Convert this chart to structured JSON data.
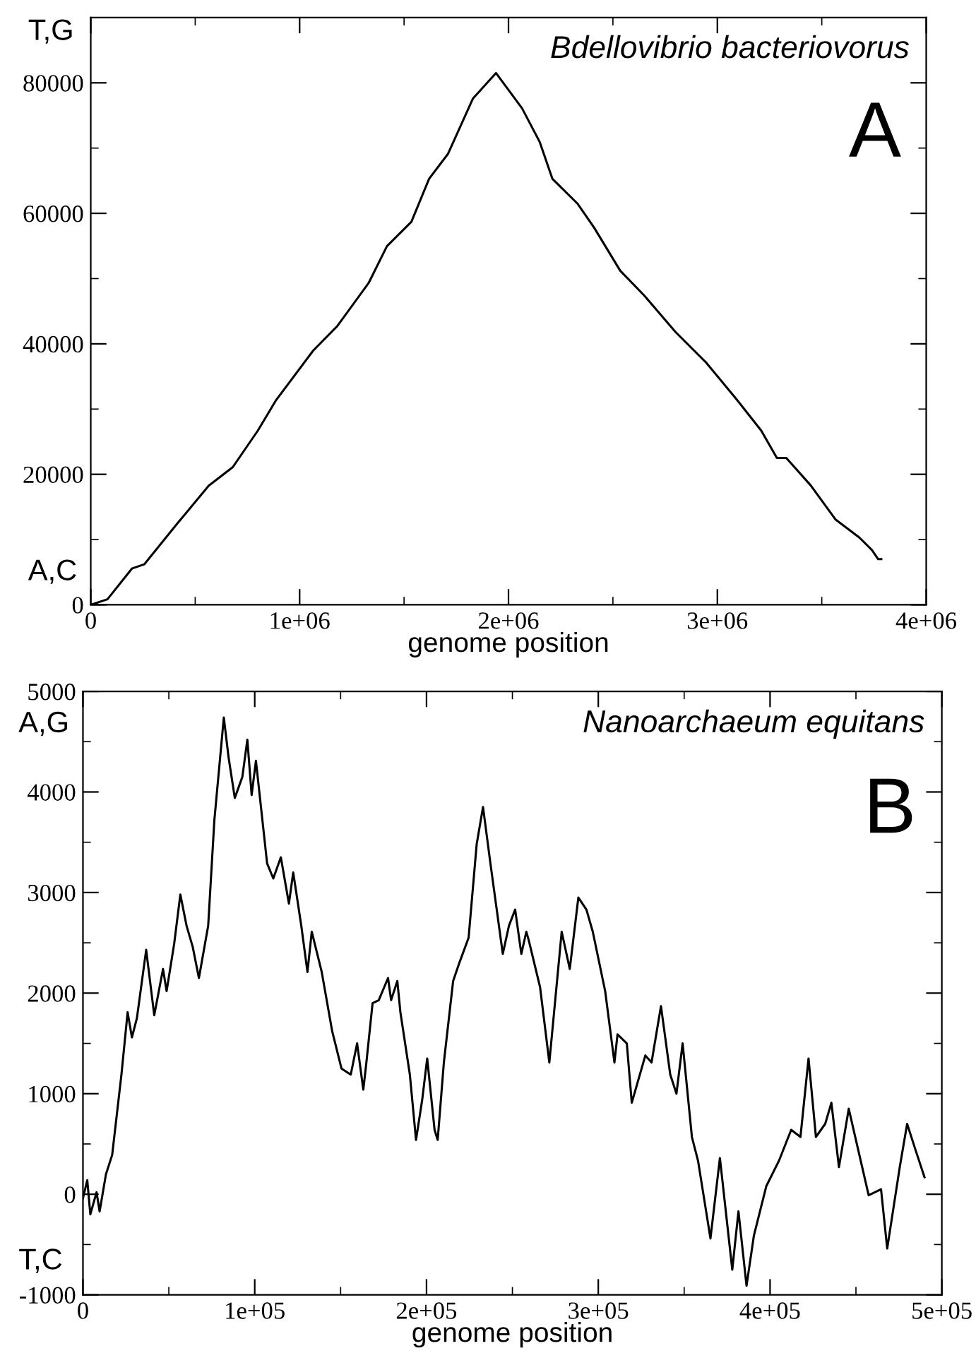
{
  "chart_data": [
    {
      "type": "line",
      "title": "Bdellovibrio bacteriovorus",
      "xlabel": "genome position",
      "annotations": [
        "T,G",
        "A,C",
        "A"
      ],
      "xlim": [
        0,
        4000000
      ],
      "ylim": [
        0,
        90000
      ],
      "xticks": [
        0,
        {
          "value": 500000,
          "label": null
        },
        {
          "value": 1000000,
          "label": "1e+06"
        },
        {
          "value": 1500000,
          "label": null
        },
        {
          "value": 2000000,
          "label": "2e+06"
        },
        {
          "value": 2500000,
          "label": null
        },
        {
          "value": 3000000,
          "label": "3e+06"
        },
        {
          "value": 3500000,
          "label": null
        },
        {
          "value": 4000000,
          "label": "4e+06"
        }
      ],
      "yticks": [
        0,
        {
          "value": 10000,
          "label": null
        },
        20000,
        {
          "value": 30000,
          "label": null
        },
        40000,
        {
          "value": 50000,
          "label": null
        },
        60000,
        {
          "value": 70000,
          "label": null
        },
        80000
      ],
      "grid": false,
      "legend": false,
      "marker": "none",
      "line_style": "solid",
      "series": [
        {
          "color": "#000000",
          "x": [
            0,
            80000,
            197000,
            256000,
            418000,
            565000,
            680000,
            800000,
            888000,
            1065000,
            1180000,
            1330000,
            1418000,
            1535000,
            1620000,
            1710000,
            1830000,
            1940000,
            2065000,
            2150000,
            2210000,
            2330000,
            2410000,
            2535000,
            2650000,
            2800000,
            2947000,
            3094000,
            3210000,
            3285000,
            3330000,
            3447000,
            3565000,
            3680000,
            3740000,
            3770000,
            3785000
          ],
          "values": [
            0,
            850,
            5550,
            6200,
            12600,
            18260,
            21100,
            26700,
            31400,
            38960,
            42700,
            49300,
            54960,
            58700,
            65300,
            69100,
            77600,
            81500,
            76100,
            70900,
            65300,
            61500,
            57800,
            51200,
            47400,
            41800,
            37100,
            31400,
            26700,
            22500,
            22500,
            18300,
            13100,
            10300,
            8400,
            7000,
            7000
          ]
        }
      ]
    },
    {
      "type": "line",
      "title": "Nanoarchaeum equitans",
      "xlabel": "genome position",
      "annotations": [
        "A,G",
        "T,C",
        "B"
      ],
      "xlim": [
        0,
        500000
      ],
      "ylim": [
        -1000,
        5000
      ],
      "xticks": [
        0,
        {
          "value": 50000,
          "label": null
        },
        {
          "value": 100000,
          "label": "1e+05"
        },
        {
          "value": 150000,
          "label": null
        },
        {
          "value": 200000,
          "label": "2e+05"
        },
        {
          "value": 250000,
          "label": null
        },
        {
          "value": 300000,
          "label": "3e+05"
        },
        {
          "value": 350000,
          "label": null
        },
        {
          "value": 400000,
          "label": "4e+05"
        },
        {
          "value": 450000,
          "label": null
        },
        {
          "value": 500000,
          "label": "5e+05"
        }
      ],
      "yticks": [
        -1000,
        {
          "value": -500,
          "label": null
        },
        0,
        {
          "value": 500,
          "label": null
        },
        1000,
        {
          "value": 1500,
          "label": null
        },
        2000,
        {
          "value": 2500,
          "label": null
        },
        3000,
        {
          "value": 3500,
          "label": null
        },
        4000,
        {
          "value": 4500,
          "label": null
        },
        5000
      ],
      "grid": false,
      "legend": false,
      "marker": "none",
      "line_style": "solid",
      "series": [
        {
          "color": "#000000",
          "x": [
            0,
            2500,
            4300,
            7900,
            9700,
            13400,
            17000,
            22400,
            26000,
            28500,
            31400,
            36800,
            41500,
            46600,
            48700,
            53100,
            56700,
            60300,
            63900,
            67500,
            72900,
            76500,
            82000,
            84800,
            88400,
            92800,
            95700,
            98200,
            100700,
            107200,
            110800,
            115200,
            119900,
            122400,
            127100,
            130700,
            133200,
            139000,
            145100,
            150500,
            155900,
            159600,
            163200,
            165000,
            168600,
            172200,
            177600,
            179400,
            183000,
            184800,
            190300,
            193900,
            197500,
            200400,
            204700,
            206500,
            210100,
            215500,
            219100,
            224500,
            229200,
            232900,
            237200,
            244400,
            248000,
            251600,
            255200,
            258100,
            259600,
            266100,
            271500,
            278700,
            283400,
            288400,
            293100,
            296800,
            304000,
            309400,
            311200,
            316600,
            319500,
            327400,
            331000,
            336500,
            341900,
            345500,
            349100,
            354500,
            358100,
            365300,
            370800,
            378000,
            381600,
            386300,
            390600,
            397800,
            405100,
            412300,
            417700,
            422400,
            426700,
            432100,
            435700,
            440100,
            445800,
            452000,
            457400,
            464600,
            468200,
            475500,
            479800,
            484500,
            489900
          ],
          "values": [
            -40,
            140,
            -200,
            20,
            -170,
            200,
            390,
            1190,
            1810,
            1560,
            1750,
            2430,
            1780,
            2240,
            2020,
            2490,
            2980,
            2670,
            2460,
            2150,
            2670,
            3720,
            4740,
            4340,
            3940,
            4150,
            4520,
            3970,
            4310,
            3290,
            3140,
            3350,
            2890,
            3200,
            2670,
            2210,
            2610,
            2210,
            1620,
            1250,
            1190,
            1500,
            1040,
            1310,
            1900,
            1930,
            2150,
            1930,
            2120,
            1810,
            1190,
            540,
            940,
            1350,
            640,
            540,
            1310,
            2120,
            2300,
            2550,
            3480,
            3850,
            3290,
            2390,
            2670,
            2830,
            2390,
            2610,
            2520,
            2060,
            1310,
            2610,
            2240,
            2950,
            2830,
            2610,
            2020,
            1310,
            1590,
            1500,
            910,
            1380,
            1310,
            1870,
            1190,
            1000,
            1500,
            570,
            330,
            -440,
            360,
            -750,
            -170,
            -910,
            -410,
            80,
            330,
            640,
            570,
            1350,
            570,
            700,
            910,
            270,
            850,
            390,
            -10,
            50,
            -540,
            270,
            700,
            450,
            170
          ]
        }
      ]
    }
  ]
}
